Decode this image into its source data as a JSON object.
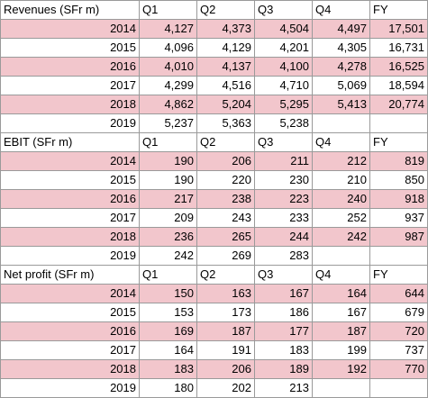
{
  "sections": [
    {
      "title": "Revenues (SFr m)",
      "columns": [
        "Q1",
        "Q2",
        "Q3",
        "Q4",
        "FY"
      ],
      "rows": [
        {
          "year": "2014",
          "values": [
            "4,127",
            "4,373",
            "4,504",
            "4,497",
            "17,501"
          ]
        },
        {
          "year": "2015",
          "values": [
            "4,096",
            "4,129",
            "4,201",
            "4,305",
            "16,731"
          ]
        },
        {
          "year": "2016",
          "values": [
            "4,010",
            "4,137",
            "4,100",
            "4,278",
            "16,525"
          ]
        },
        {
          "year": "2017",
          "values": [
            "4,299",
            "4,516",
            "4,710",
            "5,069",
            "18,594"
          ]
        },
        {
          "year": "2018",
          "values": [
            "4,862",
            "5,204",
            "5,295",
            "5,413",
            "20,774"
          ]
        },
        {
          "year": "2019",
          "values": [
            "5,237",
            "5,363",
            "5,238",
            "",
            ""
          ]
        }
      ]
    },
    {
      "title": "EBIT (SFr m)",
      "columns": [
        "Q1",
        "Q2",
        "Q3",
        "Q4",
        "FY"
      ],
      "rows": [
        {
          "year": "2014",
          "values": [
            "190",
            "206",
            "211",
            "212",
            "819"
          ]
        },
        {
          "year": "2015",
          "values": [
            "190",
            "220",
            "230",
            "210",
            "850"
          ]
        },
        {
          "year": "2016",
          "values": [
            "217",
            "238",
            "223",
            "240",
            "918"
          ]
        },
        {
          "year": "2017",
          "values": [
            "209",
            "243",
            "233",
            "252",
            "937"
          ]
        },
        {
          "year": "2018",
          "values": [
            "236",
            "265",
            "244",
            "242",
            "987"
          ]
        },
        {
          "year": "2019",
          "values": [
            "242",
            "269",
            "283",
            "",
            ""
          ]
        }
      ]
    },
    {
      "title": "Net profit (SFr m)",
      "columns": [
        "Q1",
        "Q2",
        "Q3",
        "Q4",
        "FY"
      ],
      "rows": [
        {
          "year": "2014",
          "values": [
            "150",
            "163",
            "167",
            "164",
            "644"
          ]
        },
        {
          "year": "2015",
          "values": [
            "153",
            "173",
            "186",
            "167",
            "679"
          ]
        },
        {
          "year": "2016",
          "values": [
            "169",
            "187",
            "177",
            "187",
            "720"
          ]
        },
        {
          "year": "2017",
          "values": [
            "164",
            "191",
            "183",
            "199",
            "737"
          ]
        },
        {
          "year": "2018",
          "values": [
            "183",
            "206",
            "189",
            "192",
            "770"
          ]
        },
        {
          "year": "2019",
          "values": [
            "180",
            "202",
            "213",
            "",
            ""
          ]
        }
      ]
    }
  ],
  "colors": {
    "shaded_row": "#f2c6cc",
    "border": "#9a9a9a"
  }
}
